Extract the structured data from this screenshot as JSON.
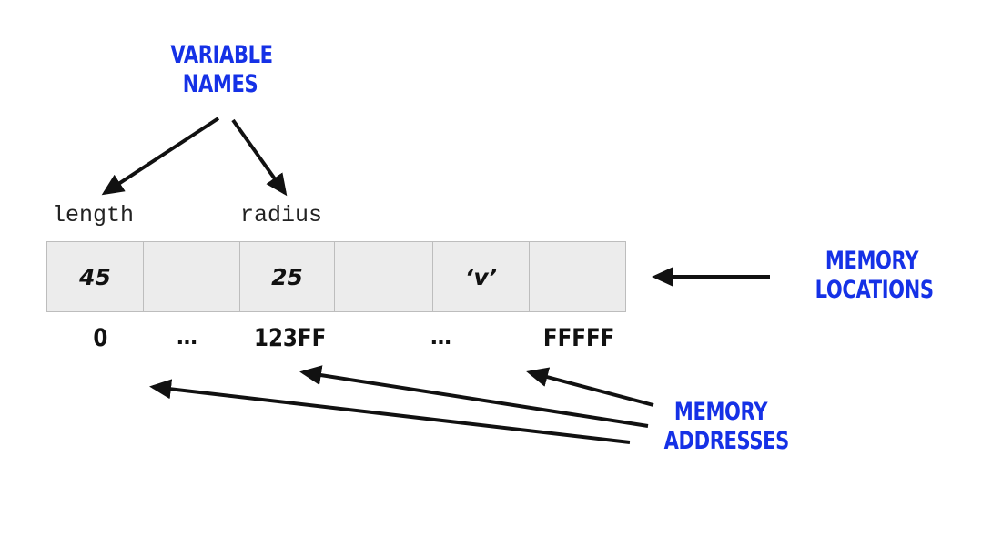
{
  "labels": {
    "variable_names": [
      "VARIABLE",
      "NAMES"
    ],
    "memory_locations": [
      "MEMORY",
      "LOCATIONS"
    ],
    "memory_addresses": [
      "MEMORY",
      "ADDRESSES"
    ]
  },
  "variables": {
    "first": "length",
    "second": "radius"
  },
  "cells": [
    {
      "value": "45"
    },
    {
      "value": ""
    },
    {
      "value": "25"
    },
    {
      "value": ""
    },
    {
      "value": "‘v’"
    },
    {
      "value": ""
    }
  ],
  "addresses": {
    "a0": "0",
    "a1": "…",
    "a2": "123FF",
    "a3": "…",
    "a4": "FFFFF"
  },
  "colors": {
    "label_blue": "#1531e6",
    "arrow": "#111111",
    "cell_fill": "#ececec",
    "cell_border": "#bdbdbd"
  }
}
